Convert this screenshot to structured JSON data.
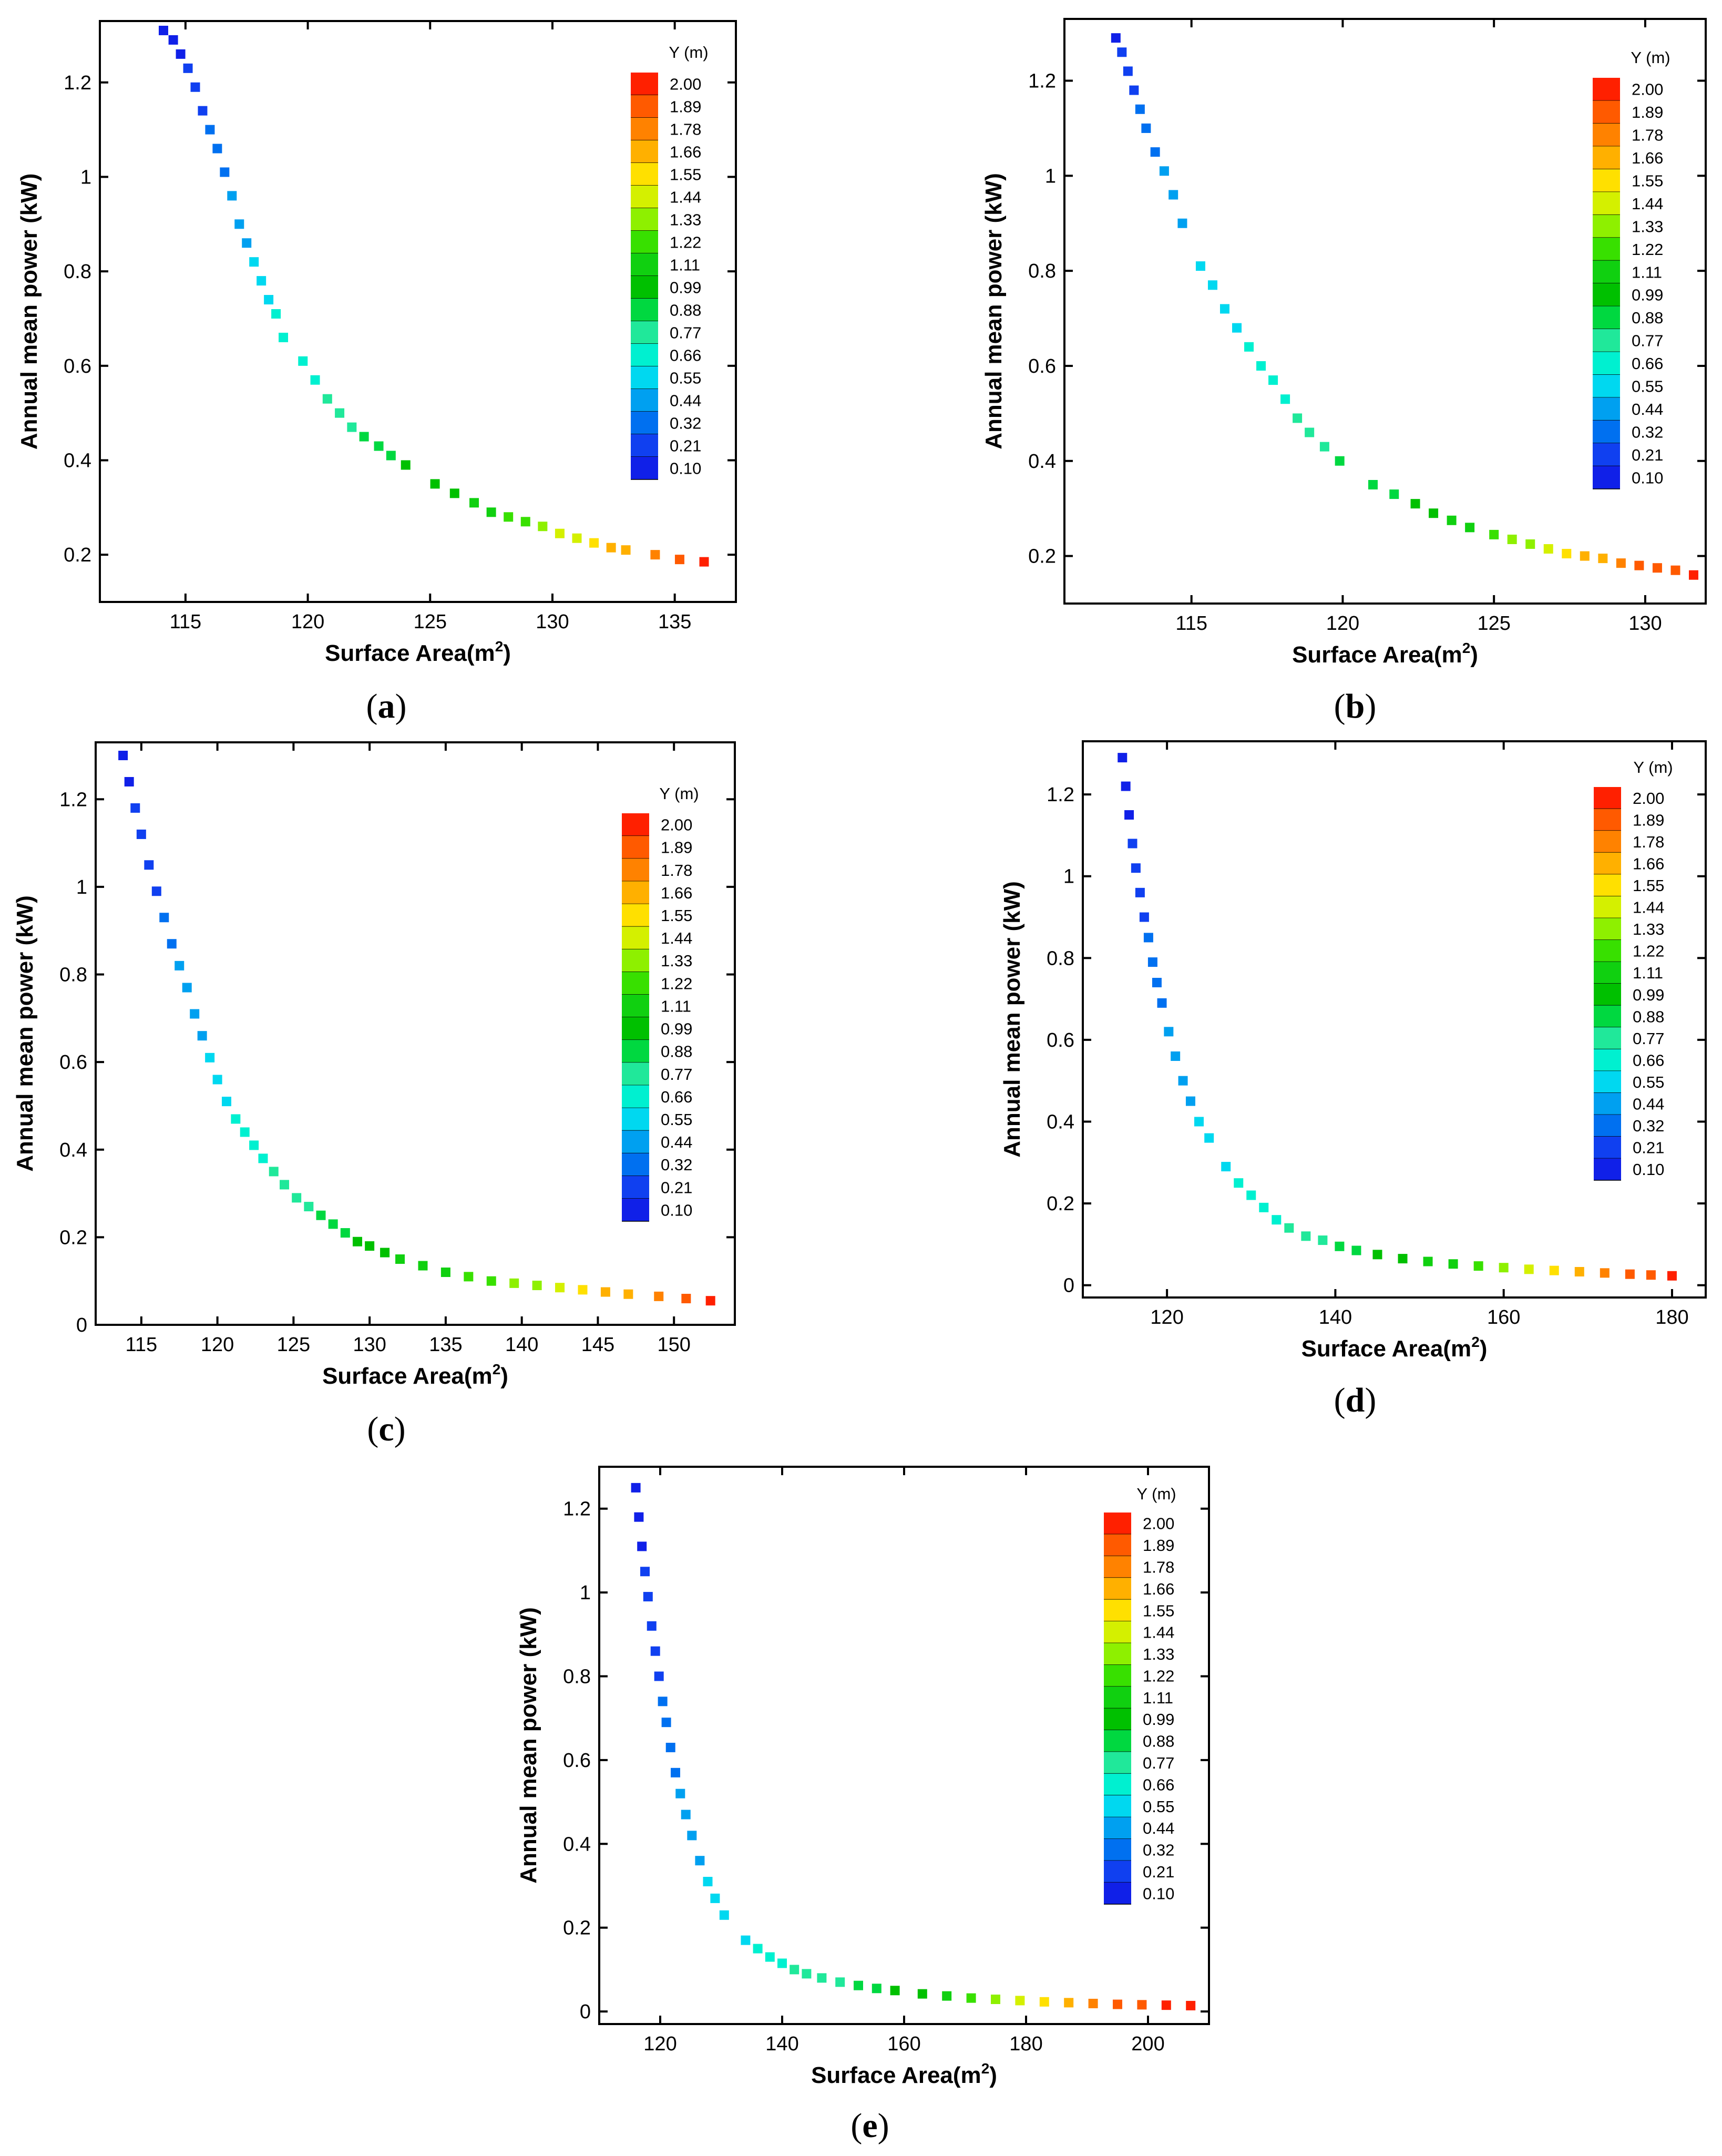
{
  "chart_data": [
    {
      "panel": "(a)",
      "type": "scatter",
      "xlabel": "Surface Area(m",
      "xlabel_sup": "2",
      "xlabel_end": ")",
      "ylabel": "Annual mean power (kW)",
      "xlim": [
        111.5,
        137.5
      ],
      "ylim": [
        0.1,
        1.33
      ],
      "xticks": [
        115,
        120,
        125,
        130,
        135
      ],
      "yticks": [
        0.2,
        0.4,
        0.6,
        0.8,
        1,
        1.2
      ],
      "colorbar_title": "Y (m)",
      "colorbar_levels": [
        "2.00",
        "1.89",
        "1.78",
        "1.66",
        "1.55",
        "1.44",
        "1.33",
        "1.22",
        "1.11",
        "0.99",
        "0.88",
        "0.77",
        "0.66",
        "0.55",
        "0.44",
        "0.32",
        "0.21",
        "0.10"
      ],
      "points": [
        [
          114.1,
          1.31,
          0.1
        ],
        [
          114.5,
          1.29,
          0.12
        ],
        [
          114.8,
          1.26,
          0.14
        ],
        [
          115.1,
          1.23,
          0.16
        ],
        [
          115.4,
          1.19,
          0.19
        ],
        [
          115.7,
          1.14,
          0.23
        ],
        [
          116.0,
          1.1,
          0.27
        ],
        [
          116.3,
          1.06,
          0.31
        ],
        [
          116.6,
          1.01,
          0.35
        ],
        [
          116.9,
          0.96,
          0.39
        ],
        [
          117.2,
          0.9,
          0.44
        ],
        [
          117.5,
          0.86,
          0.48
        ],
        [
          117.8,
          0.82,
          0.51
        ],
        [
          118.1,
          0.78,
          0.55
        ],
        [
          118.4,
          0.74,
          0.58
        ],
        [
          118.7,
          0.71,
          0.61
        ],
        [
          119.0,
          0.66,
          0.64
        ],
        [
          119.8,
          0.61,
          0.68
        ],
        [
          120.3,
          0.57,
          0.71
        ],
        [
          120.8,
          0.53,
          0.75
        ],
        [
          121.3,
          0.5,
          0.79
        ],
        [
          121.8,
          0.47,
          0.82
        ],
        [
          122.3,
          0.45,
          0.85
        ],
        [
          122.9,
          0.43,
          0.88
        ],
        [
          123.4,
          0.41,
          0.91
        ],
        [
          124.0,
          0.39,
          0.94
        ],
        [
          125.2,
          0.35,
          0.98
        ],
        [
          126.0,
          0.33,
          1.02
        ],
        [
          126.8,
          0.31,
          1.06
        ],
        [
          127.5,
          0.29,
          1.12
        ],
        [
          128.2,
          0.28,
          1.18
        ],
        [
          128.9,
          0.27,
          1.25
        ],
        [
          129.6,
          0.26,
          1.32
        ],
        [
          130.3,
          0.245,
          1.4
        ],
        [
          131.0,
          0.235,
          1.48
        ],
        [
          131.7,
          0.225,
          1.56
        ],
        [
          132.4,
          0.215,
          1.64
        ],
        [
          133.0,
          0.21,
          1.7
        ],
        [
          134.2,
          0.2,
          1.8
        ],
        [
          135.2,
          0.19,
          1.88
        ],
        [
          136.2,
          0.185,
          1.96
        ]
      ]
    },
    {
      "panel": "(b)",
      "type": "scatter",
      "xlabel": "Surface Area(m",
      "xlabel_sup": "2",
      "xlabel_end": ")",
      "ylabel": "Annual mean power (kW)",
      "xlim": [
        110.8,
        132.0
      ],
      "ylim": [
        0.1,
        1.33
      ],
      "xticks": [
        115,
        120,
        125,
        130
      ],
      "yticks": [
        0.2,
        0.4,
        0.6,
        0.8,
        1,
        1.2
      ],
      "colorbar_title": "Y (m)",
      "colorbar_levels": [
        "2.00",
        "1.89",
        "1.78",
        "1.66",
        "1.55",
        "1.44",
        "1.33",
        "1.22",
        "1.11",
        "0.99",
        "0.88",
        "0.77",
        "0.66",
        "0.55",
        "0.44",
        "0.32",
        "0.21",
        "0.10"
      ],
      "points": [
        [
          112.5,
          1.29,
          0.15
        ],
        [
          112.7,
          1.26,
          0.18
        ],
        [
          112.9,
          1.22,
          0.22
        ],
        [
          113.1,
          1.18,
          0.26
        ],
        [
          113.3,
          1.14,
          0.3
        ],
        [
          113.5,
          1.1,
          0.33
        ],
        [
          113.8,
          1.05,
          0.36
        ],
        [
          114.1,
          1.01,
          0.39
        ],
        [
          114.4,
          0.96,
          0.42
        ],
        [
          114.7,
          0.9,
          0.45
        ],
        [
          115.3,
          0.81,
          0.5
        ],
        [
          115.7,
          0.77,
          0.53
        ],
        [
          116.1,
          0.72,
          0.56
        ],
        [
          116.5,
          0.68,
          0.59
        ],
        [
          116.9,
          0.64,
          0.62
        ],
        [
          117.3,
          0.6,
          0.65
        ],
        [
          117.7,
          0.57,
          0.68
        ],
        [
          118.1,
          0.53,
          0.71
        ],
        [
          118.5,
          0.49,
          0.74
        ],
        [
          118.9,
          0.46,
          0.77
        ],
        [
          119.4,
          0.43,
          0.8
        ],
        [
          119.9,
          0.4,
          0.83
        ],
        [
          121.0,
          0.35,
          0.88
        ],
        [
          121.7,
          0.33,
          0.92
        ],
        [
          122.4,
          0.31,
          0.96
        ],
        [
          123.0,
          0.29,
          1.0
        ],
        [
          123.6,
          0.275,
          1.06
        ],
        [
          124.2,
          0.26,
          1.12
        ],
        [
          125.0,
          0.245,
          1.2
        ],
        [
          125.6,
          0.235,
          1.28
        ],
        [
          126.2,
          0.225,
          1.36
        ],
        [
          126.8,
          0.215,
          1.46
        ],
        [
          127.4,
          0.205,
          1.56
        ],
        [
          128.0,
          0.2,
          1.64
        ],
        [
          128.6,
          0.195,
          1.72
        ],
        [
          129.2,
          0.185,
          1.8
        ],
        [
          129.8,
          0.18,
          1.86
        ],
        [
          130.4,
          0.175,
          1.9
        ],
        [
          131.0,
          0.17,
          1.94
        ],
        [
          131.6,
          0.16,
          1.98
        ]
      ]
    },
    {
      "panel": "(c)",
      "type": "scatter",
      "xlabel": "Surface Area(m",
      "xlabel_sup": "2",
      "xlabel_end": ")",
      "ylabel": "Annual mean power (kW)",
      "xlim": [
        112.0,
        154.0
      ],
      "ylim": [
        0.0,
        1.33
      ],
      "xticks": [
        115,
        120,
        125,
        130,
        135,
        140,
        145,
        150
      ],
      "yticks": [
        0,
        0.2,
        0.4,
        0.6,
        0.8,
        1,
        1.2
      ],
      "colorbar_title": "Y (m)",
      "colorbar_levels": [
        "2.00",
        "1.89",
        "1.78",
        "1.66",
        "1.55",
        "1.44",
        "1.33",
        "1.22",
        "1.11",
        "0.99",
        "0.88",
        "0.77",
        "0.66",
        "0.55",
        "0.44",
        "0.32",
        "0.21",
        "0.10"
      ],
      "points": [
        [
          113.8,
          1.3,
          0.1
        ],
        [
          114.2,
          1.24,
          0.13
        ],
        [
          114.6,
          1.18,
          0.16
        ],
        [
          115.0,
          1.12,
          0.19
        ],
        [
          115.5,
          1.05,
          0.22
        ],
        [
          116.0,
          0.99,
          0.26
        ],
        [
          116.5,
          0.93,
          0.3
        ],
        [
          117.0,
          0.87,
          0.34
        ],
        [
          117.5,
          0.82,
          0.38
        ],
        [
          118.0,
          0.77,
          0.42
        ],
        [
          118.5,
          0.71,
          0.46
        ],
        [
          119.0,
          0.66,
          0.49
        ],
        [
          119.5,
          0.61,
          0.52
        ],
        [
          120.0,
          0.56,
          0.55
        ],
        [
          120.6,
          0.51,
          0.58
        ],
        [
          121.2,
          0.47,
          0.61
        ],
        [
          121.8,
          0.44,
          0.64
        ],
        [
          122.4,
          0.41,
          0.67
        ],
        [
          123.0,
          0.38,
          0.7
        ],
        [
          123.7,
          0.35,
          0.73
        ],
        [
          124.4,
          0.32,
          0.76
        ],
        [
          125.2,
          0.29,
          0.79
        ],
        [
          126.0,
          0.27,
          0.82
        ],
        [
          126.8,
          0.25,
          0.85
        ],
        [
          127.6,
          0.23,
          0.88
        ],
        [
          128.4,
          0.21,
          0.91
        ],
        [
          129.2,
          0.19,
          0.94
        ],
        [
          130.0,
          0.18,
          0.98
        ],
        [
          131.0,
          0.165,
          1.02
        ],
        [
          132.0,
          0.15,
          1.06
        ],
        [
          133.5,
          0.135,
          1.1
        ],
        [
          135.0,
          0.12,
          1.14
        ],
        [
          136.5,
          0.11,
          1.18
        ],
        [
          138.0,
          0.1,
          1.24
        ],
        [
          139.5,
          0.095,
          1.3
        ],
        [
          141.0,
          0.09,
          1.38
        ],
        [
          142.5,
          0.085,
          1.46
        ],
        [
          144.0,
          0.08,
          1.54
        ],
        [
          145.5,
          0.075,
          1.62
        ],
        [
          147.0,
          0.07,
          1.72
        ],
        [
          149.0,
          0.065,
          1.82
        ],
        [
          150.8,
          0.06,
          1.9
        ],
        [
          152.4,
          0.055,
          1.98
        ]
      ]
    },
    {
      "panel": "(d)",
      "type": "scatter",
      "xlabel": "Surface Area(m",
      "xlabel_sup": "2",
      "xlabel_end": ")",
      "ylabel": "Annual mean power (kW)",
      "xlim": [
        110.0,
        184.0
      ],
      "ylim": [
        -0.03,
        1.33
      ],
      "xticks": [
        120,
        140,
        160,
        180
      ],
      "yticks": [
        0,
        0.2,
        0.4,
        0.6,
        0.8,
        1,
        1.2
      ],
      "colorbar_title": "Y (m)",
      "colorbar_levels": [
        "2.00",
        "1.89",
        "1.78",
        "1.66",
        "1.55",
        "1.44",
        "1.33",
        "1.22",
        "1.11",
        "0.99",
        "0.88",
        "0.77",
        "0.66",
        "0.55",
        "0.44",
        "0.32",
        "0.21",
        "0.10"
      ],
      "points": [
        [
          114.7,
          1.29,
          0.1
        ],
        [
          115.1,
          1.22,
          0.12
        ],
        [
          115.5,
          1.15,
          0.14
        ],
        [
          115.9,
          1.08,
          0.16
        ],
        [
          116.3,
          1.02,
          0.19
        ],
        [
          116.8,
          0.96,
          0.22
        ],
        [
          117.3,
          0.9,
          0.25
        ],
        [
          117.8,
          0.85,
          0.28
        ],
        [
          118.3,
          0.79,
          0.31
        ],
        [
          118.8,
          0.74,
          0.34
        ],
        [
          119.4,
          0.69,
          0.37
        ],
        [
          120.2,
          0.62,
          0.4
        ],
        [
          121.0,
          0.56,
          0.43
        ],
        [
          121.9,
          0.5,
          0.46
        ],
        [
          122.8,
          0.45,
          0.49
        ],
        [
          123.8,
          0.4,
          0.52
        ],
        [
          125.0,
          0.36,
          0.55
        ],
        [
          127.0,
          0.29,
          0.58
        ],
        [
          128.5,
          0.25,
          0.61
        ],
        [
          130.0,
          0.22,
          0.64
        ],
        [
          131.5,
          0.19,
          0.67
        ],
        [
          133.0,
          0.16,
          0.7
        ],
        [
          134.5,
          0.14,
          0.73
        ],
        [
          136.5,
          0.12,
          0.77
        ],
        [
          138.5,
          0.11,
          0.81
        ],
        [
          140.5,
          0.095,
          0.85
        ],
        [
          142.5,
          0.085,
          0.9
        ],
        [
          145.0,
          0.075,
          0.96
        ],
        [
          148.0,
          0.065,
          1.02
        ],
        [
          151.0,
          0.058,
          1.08
        ],
        [
          154.0,
          0.052,
          1.16
        ],
        [
          157.0,
          0.047,
          1.24
        ],
        [
          160.0,
          0.043,
          1.34
        ],
        [
          163.0,
          0.039,
          1.46
        ],
        [
          166.0,
          0.036,
          1.58
        ],
        [
          169.0,
          0.033,
          1.68
        ],
        [
          172.0,
          0.03,
          1.78
        ],
        [
          175.0,
          0.027,
          1.86
        ],
        [
          177.5,
          0.025,
          1.92
        ],
        [
          180.0,
          0.023,
          1.98
        ]
      ]
    },
    {
      "panel": "(e)",
      "type": "scatter",
      "xlabel": "Surface Area(m",
      "xlabel_sup": "2",
      "xlabel_end": ")",
      "ylabel": "Annual mean power (kW)",
      "xlim": [
        110.0,
        210.0
      ],
      "ylim": [
        -0.03,
        1.3
      ],
      "xticks": [
        120,
        140,
        160,
        180,
        200
      ],
      "yticks": [
        0,
        0.2,
        0.4,
        0.6,
        0.8,
        1,
        1.2
      ],
      "colorbar_title": "Y (m)",
      "colorbar_levels": [
        "2.00",
        "1.89",
        "1.78",
        "1.66",
        "1.55",
        "1.44",
        "1.33",
        "1.22",
        "1.11",
        "0.99",
        "0.88",
        "0.77",
        "0.66",
        "0.55",
        "0.44",
        "0.32",
        "0.21",
        "0.10"
      ],
      "points": [
        [
          116.0,
          1.25,
          0.1
        ],
        [
          116.5,
          1.18,
          0.12
        ],
        [
          117.0,
          1.11,
          0.14
        ],
        [
          117.5,
          1.05,
          0.16
        ],
        [
          118.0,
          0.99,
          0.18
        ],
        [
          118.6,
          0.92,
          0.2
        ],
        [
          119.2,
          0.86,
          0.22
        ],
        [
          119.8,
          0.8,
          0.25
        ],
        [
          120.4,
          0.74,
          0.28
        ],
        [
          121.0,
          0.69,
          0.31
        ],
        [
          121.7,
          0.63,
          0.34
        ],
        [
          122.5,
          0.57,
          0.37
        ],
        [
          123.3,
          0.52,
          0.4
        ],
        [
          124.2,
          0.47,
          0.43
        ],
        [
          125.2,
          0.42,
          0.46
        ],
        [
          126.5,
          0.36,
          0.49
        ],
        [
          127.8,
          0.31,
          0.52
        ],
        [
          129.0,
          0.27,
          0.54
        ],
        [
          130.5,
          0.23,
          0.56
        ],
        [
          134.0,
          0.17,
          0.6
        ],
        [
          136.0,
          0.15,
          0.63
        ],
        [
          138.0,
          0.13,
          0.66
        ],
        [
          140.0,
          0.115,
          0.69
        ],
        [
          142.0,
          0.1,
          0.72
        ],
        [
          144.0,
          0.09,
          0.75
        ],
        [
          146.5,
          0.08,
          0.78
        ],
        [
          149.5,
          0.07,
          0.82
        ],
        [
          152.5,
          0.062,
          0.86
        ],
        [
          155.5,
          0.055,
          0.91
        ],
        [
          158.5,
          0.05,
          0.96
        ],
        [
          163.0,
          0.042,
          1.04
        ],
        [
          167.0,
          0.037,
          1.14
        ],
        [
          171.0,
          0.032,
          1.24
        ],
        [
          175.0,
          0.029,
          1.34
        ],
        [
          179.0,
          0.026,
          1.44
        ],
        [
          183.0,
          0.023,
          1.54
        ],
        [
          187.0,
          0.021,
          1.64
        ],
        [
          191.0,
          0.019,
          1.74
        ],
        [
          195.0,
          0.017,
          1.84
        ],
        [
          199.0,
          0.016,
          1.9
        ],
        [
          203.0,
          0.015,
          1.95
        ],
        [
          207.0,
          0.014,
          1.99
        ]
      ]
    }
  ],
  "panel_labels": {
    "a": {
      "open": "(",
      "letter": "a",
      "close": ")"
    },
    "b": {
      "open": "(",
      "letter": "b",
      "close": ")"
    },
    "c": {
      "open": "(",
      "letter": "c",
      "close": ")"
    },
    "d": {
      "open": "(",
      "letter": "d",
      "close": ")"
    },
    "e": {
      "open": "(",
      "letter": "e",
      "close": ")"
    }
  },
  "colors": {
    "palette": [
      "#ff2000",
      "#ff5a00",
      "#ff8200",
      "#ffb000",
      "#ffe000",
      "#d4f000",
      "#8ef000",
      "#38e000",
      "#10d010",
      "#00c000",
      "#00d840",
      "#20e89a",
      "#00f0d0",
      "#00d8f0",
      "#00a0f0",
      "#0070f0",
      "#1040f0",
      "#1020e8"
    ]
  }
}
